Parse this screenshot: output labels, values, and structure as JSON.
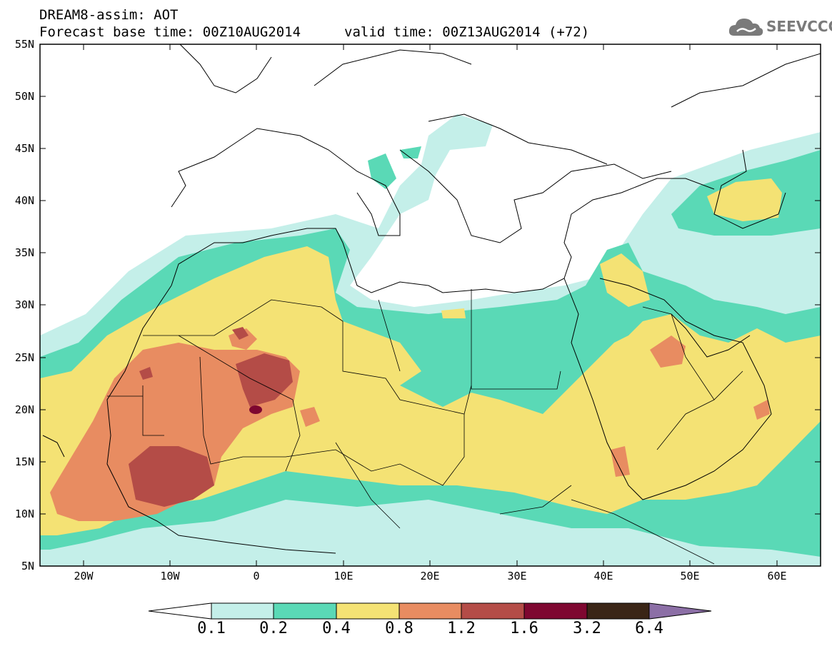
{
  "title_line1": "DREAM8-assim: AOT",
  "title_line2_base": "Forecast base time: 00Z10AUG2014",
  "title_line2_valid": "valid time: 00Z13AUG2014 (+72)",
  "logo_text": "SEEVCCC",
  "logo_icon": "cloud-icon",
  "map": {
    "lon_range": [
      -25,
      65
    ],
    "lat_range": [
      5,
      55
    ],
    "lat_ticks": [
      "55N",
      "50N",
      "45N",
      "40N",
      "35N",
      "30N",
      "25N",
      "20N",
      "15N",
      "10N",
      "5N"
    ],
    "lon_ticks": [
      "20W",
      "10W",
      "0",
      "10E",
      "20E",
      "30E",
      "40E",
      "50E",
      "60E"
    ],
    "field": "AOT"
  },
  "colorbar": {
    "labels": [
      "0.1",
      "0.2",
      "0.4",
      "0.8",
      "1.2",
      "1.6",
      "3.2",
      "6.4"
    ],
    "colors": {
      "below": "#ffffff",
      "c1": "#c4efe9",
      "c2": "#5ad9b6",
      "c3": "#f4e274",
      "c4": "#e88c61",
      "c5": "#b44c47",
      "c6": "#7e0730",
      "c7": "#3a2516",
      "above": "#8c6fa6"
    }
  }
}
